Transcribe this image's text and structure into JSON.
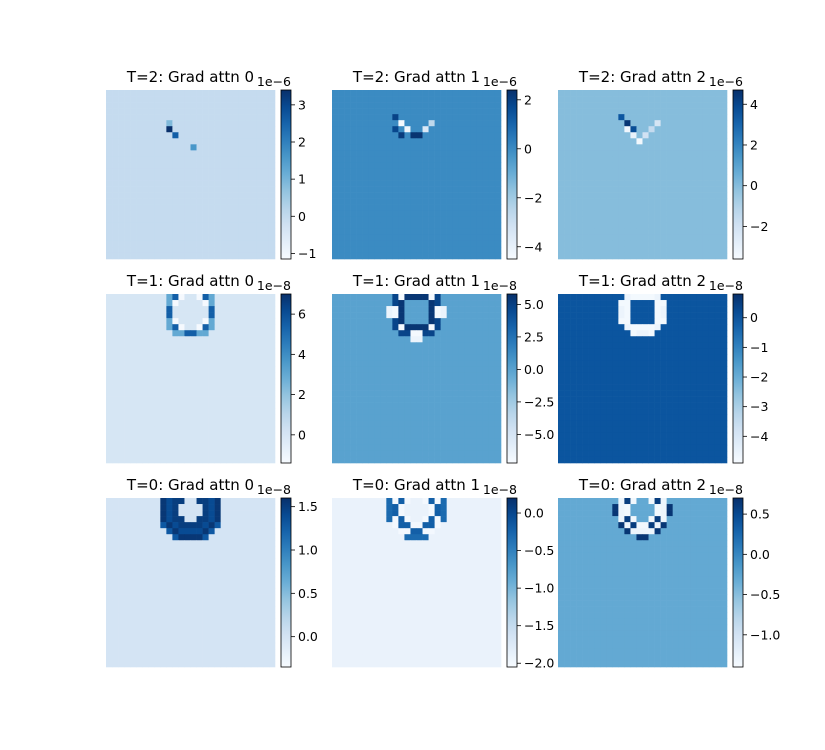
{
  "chart_data": [
    {
      "type": "heatmap",
      "title": "T=2: Grad attn 0",
      "colormap": "Blues",
      "multiplier": "1e−6",
      "colorbar_ticks": [
        {
          "v": -1,
          "label": "−1"
        },
        {
          "v": 0,
          "label": "0"
        },
        {
          "v": 1,
          "label": "1"
        },
        {
          "v": 2,
          "label": "2"
        },
        {
          "v": 3,
          "label": "3"
        }
      ],
      "vmin": -1.15,
      "vmax": 3.4,
      "background": 0,
      "highlights": [
        {
          "col": 10,
          "row": 6,
          "value": 3.4
        },
        {
          "col": 11,
          "row": 7,
          "value": 2.6
        },
        {
          "col": 14,
          "row": 9,
          "value": 1.6
        },
        {
          "col": 10,
          "row": 5,
          "value": 0.9
        }
      ]
    },
    {
      "type": "heatmap",
      "title": "T=2: Grad attn 1",
      "colormap": "Blues",
      "multiplier": "1e−6",
      "colorbar_ticks": [
        {
          "v": -4,
          "label": "−4"
        },
        {
          "v": -2,
          "label": "−2"
        },
        {
          "v": 0,
          "label": "0"
        },
        {
          "v": 2,
          "label": "2"
        }
      ],
      "vmin": -4.5,
      "vmax": 2.4,
      "background": 0,
      "highlights": [
        {
          "col": 10,
          "row": 4,
          "value": 1.9
        },
        {
          "col": 11,
          "row": 5,
          "value": -4.4
        },
        {
          "col": 12,
          "row": 6,
          "value": -4.2
        },
        {
          "col": 13,
          "row": 7,
          "value": 2.3
        },
        {
          "col": 14,
          "row": 7,
          "value": 2.3
        },
        {
          "col": 15,
          "row": 6,
          "value": -3.5
        },
        {
          "col": 16,
          "row": 5,
          "value": -2.6
        },
        {
          "col": 11,
          "row": 7,
          "value": 2.1
        },
        {
          "col": 10,
          "row": 6,
          "value": 1.8
        }
      ]
    },
    {
      "type": "heatmap",
      "title": "T=2: Grad attn 2",
      "colormap": "Blues",
      "multiplier": "1e−6",
      "colorbar_ticks": [
        {
          "v": -2,
          "label": "−2"
        },
        {
          "v": 0,
          "label": "0"
        },
        {
          "v": 2,
          "label": "2"
        },
        {
          "v": 4,
          "label": "4"
        }
      ],
      "vmin": -3.6,
      "vmax": 4.7,
      "background": 0,
      "highlights": [
        {
          "col": 10,
          "row": 4,
          "value": 3.5
        },
        {
          "col": 11,
          "row": 5,
          "value": 4.5
        },
        {
          "col": 11,
          "row": 6,
          "value": -3.3
        },
        {
          "col": 12,
          "row": 7,
          "value": -3.0
        },
        {
          "col": 13,
          "row": 8,
          "value": -3.4
        },
        {
          "col": 14,
          "row": 7,
          "value": -2.0
        },
        {
          "col": 15,
          "row": 6,
          "value": -1.5
        },
        {
          "col": 16,
          "row": 5,
          "value": -2.2
        },
        {
          "col": 12,
          "row": 6,
          "value": 3.8
        }
      ]
    },
    {
      "type": "heatmap",
      "title": "T=1: Grad attn 0",
      "colormap": "Blues",
      "multiplier": "1e−8",
      "colorbar_ticks": [
        {
          "v": 0,
          "label": "0"
        },
        {
          "v": 2,
          "label": "2"
        },
        {
          "v": 4,
          "label": "4"
        },
        {
          "v": 6,
          "label": "6"
        }
      ],
      "vmin": -1.4,
      "vmax": 7.0,
      "background": 0,
      "ring": {
        "cx": 13.5,
        "cy": 2.5,
        "r1": 3.2,
        "r2": 4.4,
        "values": [
          -1.3,
          5.5,
          3.0,
          -0.8
        ]
      }
    },
    {
      "type": "heatmap",
      "title": "T=1: Grad attn 1",
      "colormap": "Blues",
      "multiplier": "1e−8",
      "colorbar_ticks": [
        {
          "v": -5,
          "label": "−5.0"
        },
        {
          "v": -2.5,
          "label": "−2.5"
        },
        {
          "v": 0,
          "label": "0.0"
        },
        {
          "v": 2.5,
          "label": "2.5"
        },
        {
          "v": 5,
          "label": "5.0"
        }
      ],
      "vmin": -7.2,
      "vmax": 5.8,
      "background": 0,
      "ring": {
        "cx": 13.5,
        "cy": 2.5,
        "r1": 2.8,
        "r2": 4.6,
        "values": [
          5.5,
          -7.0,
          4.8,
          -6.5
        ]
      }
    },
    {
      "type": "heatmap",
      "title": "T=1: Grad attn 2",
      "colormap": "Blues",
      "multiplier": "1e−8",
      "colorbar_ticks": [
        {
          "v": -4,
          "label": "−4"
        },
        {
          "v": -3,
          "label": "−3"
        },
        {
          "v": -2,
          "label": "−2"
        },
        {
          "v": -1,
          "label": "−1"
        },
        {
          "v": 0,
          "label": "0"
        }
      ],
      "vmin": -4.9,
      "vmax": 0.8,
      "background": 0,
      "ring": {
        "cx": 13.5,
        "cy": 2.5,
        "r1": 3.0,
        "r2": 4.2,
        "values": [
          -4.8,
          -4.6,
          -4.8,
          -4.7
        ]
      }
    },
    {
      "type": "heatmap",
      "title": "T=0: Grad attn 0",
      "colormap": "Blues",
      "multiplier": "1e−8",
      "colorbar_ticks": [
        {
          "v": 0,
          "label": "0.0"
        },
        {
          "v": 0.5,
          "label": "0.5"
        },
        {
          "v": 1,
          "label": "1.0"
        },
        {
          "v": 1.5,
          "label": "1.5"
        }
      ],
      "vmin": -0.35,
      "vmax": 1.6,
      "background": 0,
      "ring": {
        "cx": 13.5,
        "cy": 1.5,
        "r1": 2.6,
        "r2": 5.2,
        "values": [
          1.5,
          1.4,
          1.55,
          1.3
        ]
      }
    },
    {
      "type": "heatmap",
      "title": "T=0: Grad attn 1",
      "colormap": "Blues",
      "multiplier": "1e−8",
      "colorbar_ticks": [
        {
          "v": -2,
          "label": "−2.0"
        },
        {
          "v": -1.5,
          "label": "−1.5"
        },
        {
          "v": -1,
          "label": "−1.0"
        },
        {
          "v": -0.5,
          "label": "−0.5"
        },
        {
          "v": 0,
          "label": "0.0"
        }
      ],
      "vmin": -2.05,
      "vmax": 0.2,
      "background": -1.9,
      "ring": {
        "cx": 13.5,
        "cy": 1.5,
        "r1": 2.5,
        "r2": 4.8,
        "values": [
          -2.0,
          -0.2,
          -2.0,
          -0.3
        ]
      }
    },
    {
      "type": "heatmap",
      "title": "T=0: Grad attn 2",
      "colormap": "Blues",
      "multiplier": "1e−8",
      "colorbar_ticks": [
        {
          "v": -1,
          "label": "−1.0"
        },
        {
          "v": -0.5,
          "label": "−0.5"
        },
        {
          "v": 0,
          "label": "0.0"
        },
        {
          "v": 0.5,
          "label": "0.5"
        }
      ],
      "vmin": -1.4,
      "vmax": 0.7,
      "background": -0.3,
      "ring": {
        "cx": 13.5,
        "cy": 1.5,
        "r1": 2.4,
        "r2": 4.6,
        "values": [
          -1.35,
          0.6,
          -1.3,
          0.65
        ]
      }
    }
  ]
}
